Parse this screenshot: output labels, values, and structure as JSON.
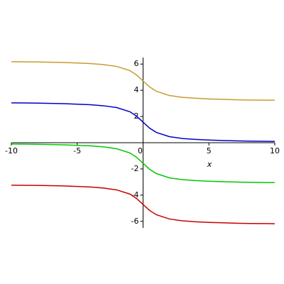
{
  "chart_data": {
    "type": "line",
    "xlabel": "x",
    "x": [
      -10,
      -9,
      -8,
      -7,
      -6,
      -5,
      -4,
      -3,
      -2,
      -1,
      -0.5,
      0,
      0.5,
      1,
      2,
      3,
      4,
      5,
      6,
      7,
      8,
      9,
      10
    ],
    "series": [
      {
        "color": "#c89b32",
        "values": [
          6.18,
          6.17,
          6.16,
          6.14,
          6.12,
          6.08,
          6.04,
          5.96,
          5.82,
          5.5,
          5.17,
          4.71,
          4.25,
          3.93,
          3.6,
          3.46,
          3.39,
          3.34,
          3.31,
          3.28,
          3.26,
          3.25,
          3.24
        ]
      },
      {
        "color": "#0000c8",
        "values": [
          3.04,
          3.03,
          3.02,
          3.0,
          2.98,
          2.94,
          2.9,
          2.82,
          2.68,
          2.36,
          2.03,
          1.57,
          1.11,
          0.79,
          0.46,
          0.32,
          0.25,
          0.2,
          0.17,
          0.14,
          0.12,
          0.11,
          0.1
        ]
      },
      {
        "color": "#00c800",
        "values": [
          -0.1,
          -0.11,
          -0.12,
          -0.14,
          -0.16,
          -0.2,
          -0.24,
          -0.32,
          -0.46,
          -0.78,
          -1.11,
          -1.57,
          -2.03,
          -2.35,
          -2.68,
          -2.82,
          -2.89,
          -2.94,
          -2.97,
          -3.0,
          -3.02,
          -3.03,
          -3.04
        ]
      },
      {
        "color": "#c80000",
        "values": [
          -3.24,
          -3.25,
          -3.26,
          -3.28,
          -3.3,
          -3.34,
          -3.38,
          -3.46,
          -3.6,
          -3.92,
          -4.25,
          -4.71,
          -5.17,
          -5.49,
          -5.82,
          -5.96,
          -6.03,
          -6.08,
          -6.11,
          -6.14,
          -6.16,
          -6.17,
          -6.18
        ]
      }
    ],
    "xlim": [
      -10,
      10
    ],
    "ylim": [
      -6.5,
      6.5
    ],
    "xticks": [
      -10,
      -5,
      0,
      5,
      10
    ],
    "yticks": [
      -6,
      -4,
      -2,
      2,
      4,
      6
    ]
  }
}
